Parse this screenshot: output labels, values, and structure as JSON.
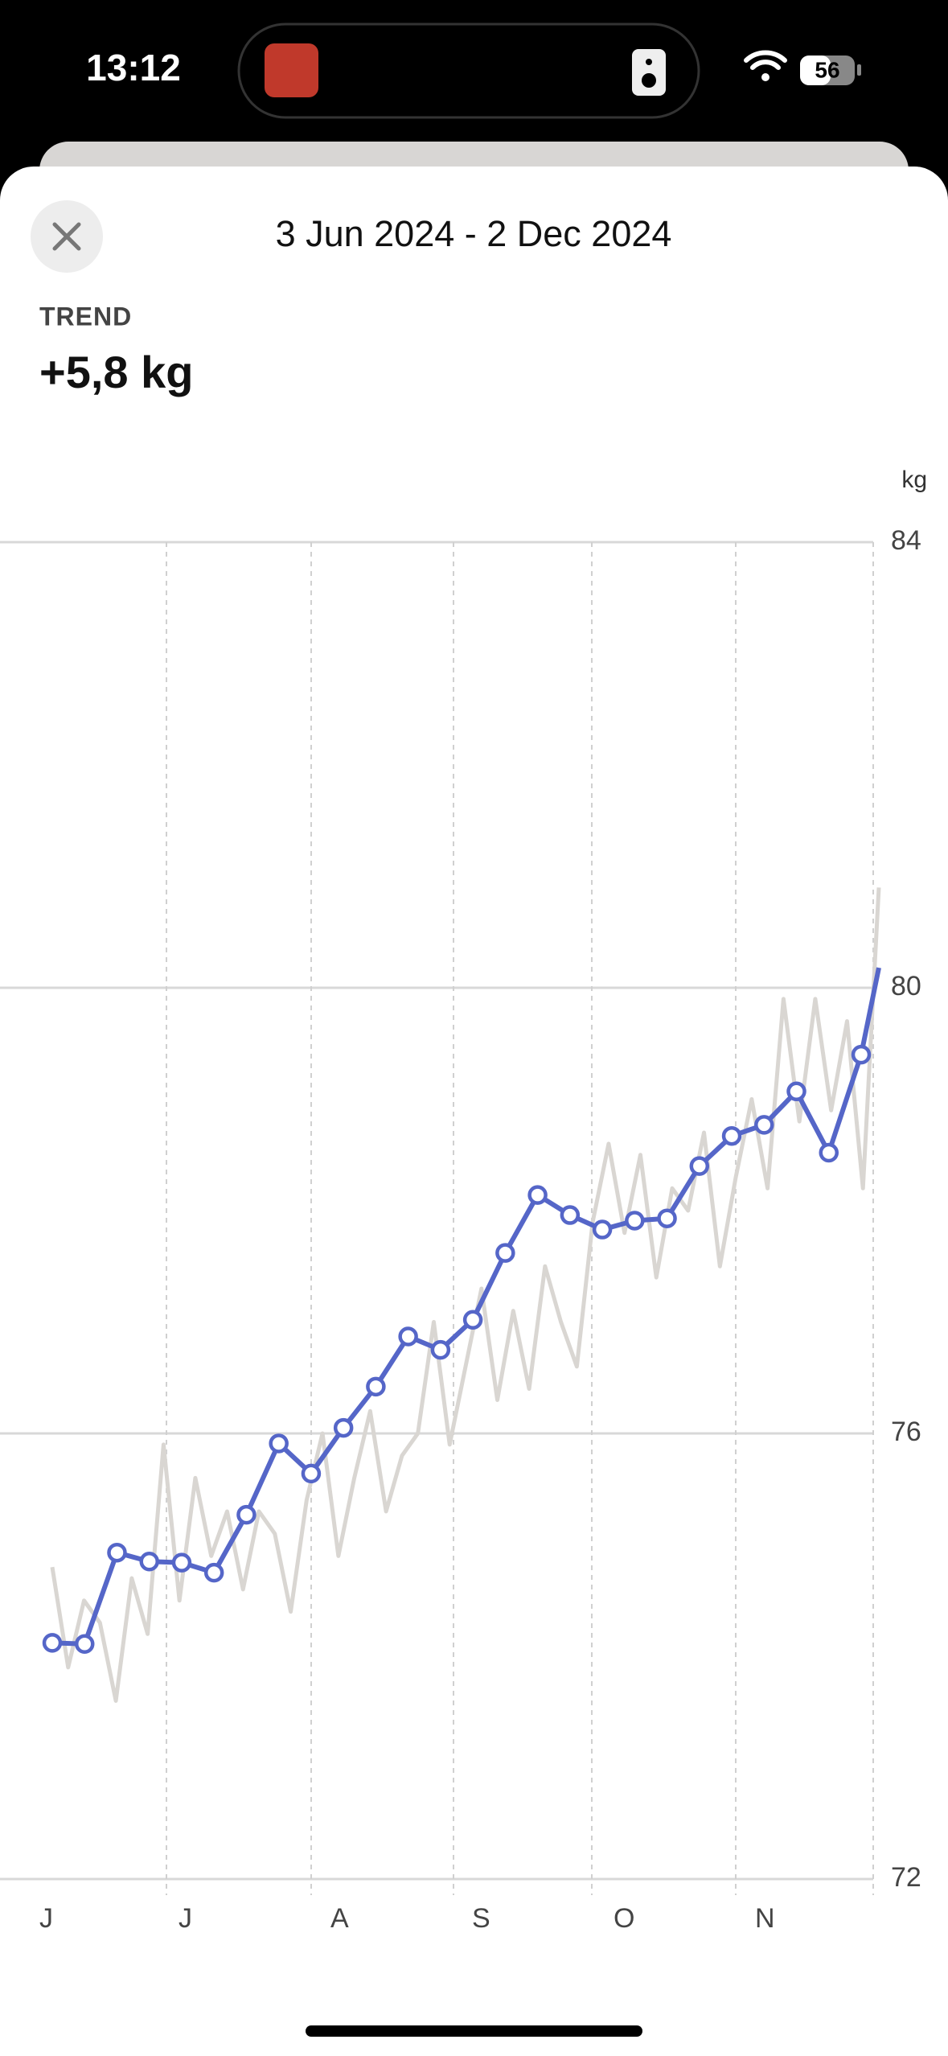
{
  "status": {
    "time": "13:12",
    "battery": "56"
  },
  "header": {
    "date_range": "3 Jun 2024 - 2 Dec 2024"
  },
  "trend": {
    "label": "TREND",
    "value": "+5,8 kg"
  },
  "chart_data": {
    "type": "line",
    "y_unit": "kg",
    "ylim": [
      72,
      84
    ],
    "yticks": [
      72,
      76,
      80,
      84
    ],
    "grid": true,
    "month_labels": [
      "J",
      "J",
      "A",
      "S",
      "O",
      "N"
    ],
    "series": [
      {
        "name": "daily",
        "color": "#d9d6d2",
        "values": [
          74.8,
          73.9,
          74.5,
          74.3,
          73.6,
          74.7,
          74.2,
          75.9,
          74.5,
          75.6,
          74.9,
          75.3,
          74.6,
          75.3,
          75.1,
          74.4,
          75.4,
          76.0,
          74.9,
          75.6,
          76.2,
          75.3,
          75.8,
          76.0,
          77.0,
          75.9,
          76.6,
          77.3,
          76.3,
          77.1,
          76.4,
          77.5,
          77.0,
          76.6,
          77.9,
          78.6,
          77.8,
          78.5,
          77.4,
          78.2,
          78.0,
          78.7,
          77.5,
          78.3,
          79.0,
          78.2,
          79.9,
          78.8,
          79.9,
          78.9,
          79.7,
          78.2,
          80.9
        ]
      },
      {
        "name": "trend",
        "color": "#5566c8",
        "values": [
          74.12,
          74.11,
          74.93,
          74.85,
          74.84,
          74.75,
          75.27,
          75.91,
          75.64,
          76.05,
          76.42,
          76.87,
          76.75,
          77.02,
          77.62,
          78.14,
          77.96,
          77.83,
          77.91,
          77.93,
          78.4,
          78.67,
          78.77,
          79.07,
          78.52,
          79.4,
          80.18
        ]
      }
    ]
  }
}
